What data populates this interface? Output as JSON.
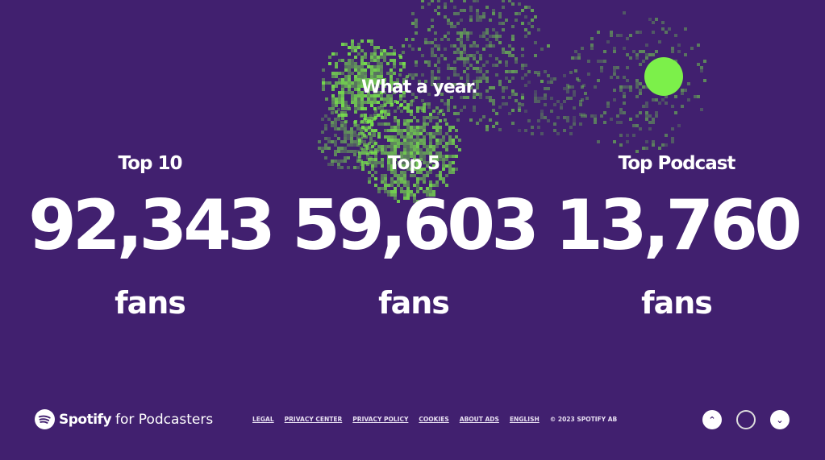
{
  "headline": "What a year.",
  "colors": {
    "background": "#41206f",
    "accent": "#7cf04a"
  },
  "stats": [
    {
      "label": "Top 10",
      "value": "92,343",
      "unit": "fans"
    },
    {
      "label": "Top 5",
      "value": "59,603",
      "unit": "fans"
    },
    {
      "label": "Top Podcast",
      "value": "13,760",
      "unit": "fans"
    }
  ],
  "footer": {
    "logo": {
      "brand": "Spotify",
      "suffix": "for Podcasters",
      "icon": "spotify-logo-icon"
    },
    "links": [
      "LEGAL",
      "PRIVACY CENTER",
      "PRIVACY POLICY",
      "COOKIES",
      "ABOUT ADS",
      "ENGLISH"
    ],
    "copyright": "© 2023 SPOTIFY AB"
  },
  "nav": {
    "up_icon": "chevron-up-icon",
    "progress_icon": "ring-icon",
    "down_icon": "chevron-down-icon"
  }
}
